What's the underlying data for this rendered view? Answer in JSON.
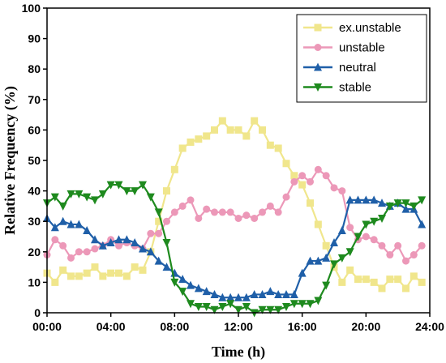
{
  "chart_data": {
    "type": "line",
    "xlabel": "Time (h)",
    "ylabel": "Relative Frequency (%)",
    "xlim": [
      0,
      24
    ],
    "ylim": [
      0,
      100
    ],
    "x_ticks": [
      0,
      4,
      8,
      12,
      16,
      20,
      24
    ],
    "x_tick_labels": [
      "00:00",
      "04:00",
      "08:00",
      "12:00",
      "16:00",
      "20:00",
      "24:00"
    ],
    "y_ticks": [
      0,
      10,
      20,
      30,
      40,
      50,
      60,
      70,
      80,
      90,
      100
    ],
    "y_tick_labels": [
      "0",
      "10",
      "20",
      "30",
      "40",
      "50",
      "60",
      "70",
      "80",
      "90",
      "100"
    ],
    "grid": false,
    "legend_position": "top-right",
    "x": [
      0,
      0.5,
      1,
      1.5,
      2,
      2.5,
      3,
      3.5,
      4,
      4.5,
      5,
      5.5,
      6,
      6.5,
      7,
      7.5,
      8,
      8.5,
      9,
      9.5,
      10,
      10.5,
      11,
      11.5,
      12,
      12.5,
      13,
      13.5,
      14,
      14.5,
      15,
      15.5,
      16,
      16.5,
      17,
      17.5,
      18,
      18.5,
      19,
      19.5,
      20,
      20.5,
      21,
      21.5,
      22,
      22.5,
      23,
      23.5
    ],
    "series": [
      {
        "name": "ex.unstable",
        "color": "#f0e68c",
        "marker": "square",
        "values": [
          13,
          10,
          14,
          12,
          12,
          13,
          15,
          12,
          13,
          13,
          12,
          15,
          14,
          20,
          30,
          40,
          47,
          54,
          56,
          57,
          58,
          60,
          63,
          60,
          60,
          58,
          63,
          60,
          55,
          54,
          49,
          45,
          42,
          36,
          29,
          22,
          15,
          10,
          14,
          11,
          11,
          10,
          8,
          11,
          11,
          8,
          12,
          10
        ]
      },
      {
        "name": "unstable",
        "color": "#ec98b8",
        "marker": "circle",
        "values": [
          19,
          24,
          22,
          18,
          20,
          20,
          21,
          22,
          24,
          22,
          23,
          22,
          21,
          26,
          26,
          30,
          33,
          35,
          37,
          31,
          34,
          33,
          33,
          33,
          31,
          32,
          31,
          33,
          35,
          33,
          38,
          43,
          45,
          43,
          47,
          45,
          41,
          40,
          28,
          24,
          25,
          24,
          22,
          19,
          22,
          17,
          19,
          22
        ]
      },
      {
        "name": "neutral",
        "color": "#1f5fa8",
        "marker": "triangle-up",
        "values": [
          31,
          28,
          30,
          29,
          29,
          27,
          24,
          22,
          23,
          24,
          24,
          23,
          21,
          20,
          17,
          15,
          13,
          11,
          9,
          8,
          7,
          6,
          5,
          5,
          5,
          5,
          6,
          6,
          7,
          6,
          6,
          6,
          13,
          17,
          17,
          18,
          23,
          27,
          37,
          37,
          37,
          37,
          36,
          35,
          36,
          34,
          34,
          29
        ]
      },
      {
        "name": "stable",
        "color": "#1e8a1e",
        "marker": "triangle-down",
        "values": [
          36,
          38,
          35,
          39,
          39,
          38,
          37,
          39,
          42,
          42,
          40,
          40,
          42,
          38,
          33,
          23,
          10,
          7,
          3,
          2,
          2,
          1,
          2,
          3,
          1,
          2,
          0,
          1,
          1,
          1,
          2,
          3,
          3,
          3,
          4,
          9,
          16,
          18,
          20,
          25,
          29,
          30,
          31,
          35,
          36,
          36,
          35,
          37
        ]
      }
    ]
  }
}
